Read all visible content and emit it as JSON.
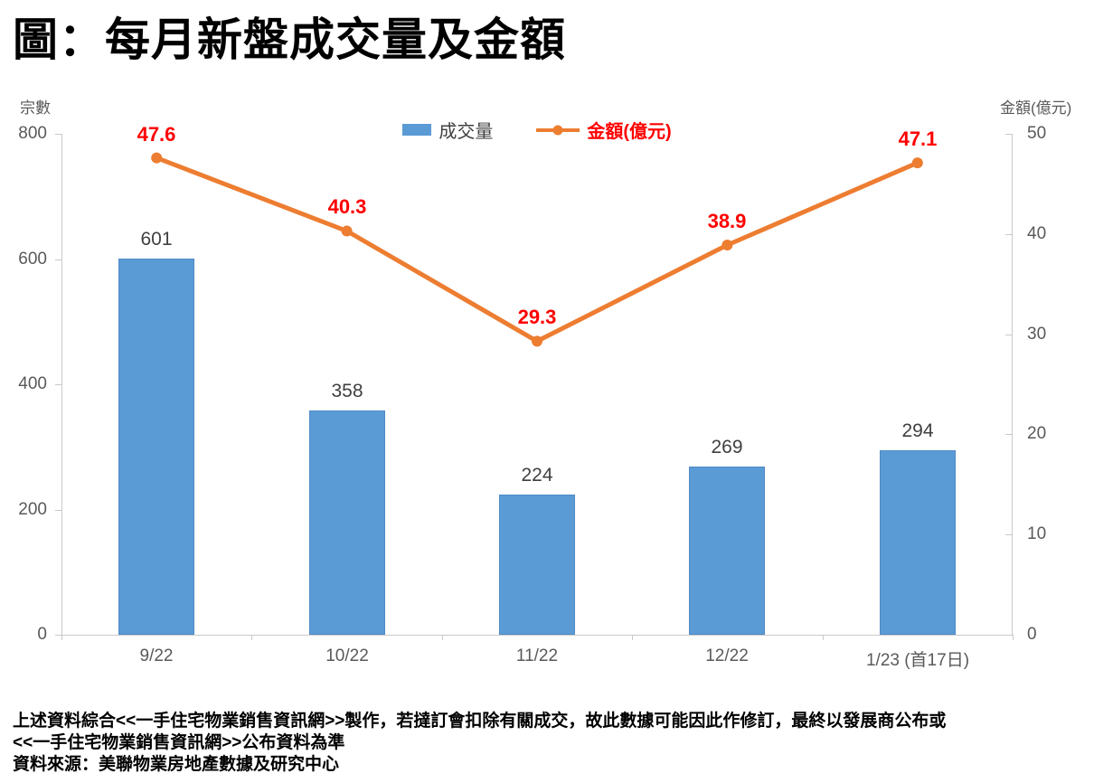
{
  "title": "圖：每月新盤成交量及金額",
  "chart_data": {
    "type": "bar",
    "subtype": "combo bar+line, dual axis",
    "categories": [
      "9/22",
      "10/22",
      "11/22",
      "12/22",
      "1/23 (首17日)"
    ],
    "series": [
      {
        "name": "成交量",
        "type": "bar",
        "axis": "left",
        "values": [
          601,
          358,
          224,
          269,
          294
        ]
      },
      {
        "name": "金額(億元)",
        "type": "line",
        "axis": "right",
        "values": [
          47.6,
          40.3,
          29.3,
          38.9,
          47.1
        ]
      }
    ],
    "left_axis": {
      "label": "宗數",
      "ticks": [
        0,
        200,
        400,
        600,
        800
      ],
      "min": 0,
      "max": 800
    },
    "right_axis": {
      "label": "金額(億元)",
      "ticks": [
        0,
        10,
        20,
        30,
        40,
        50
      ],
      "min": 0,
      "max": 50
    },
    "legend_position": "top-center",
    "grid": false
  },
  "colors": {
    "bar_fill": "#5b9bd5",
    "bar_border": "#4e8ac8",
    "line_stroke": "#ed7d31",
    "line_value_label": "#ff0000",
    "axis_line": "#c9c9c9",
    "tick_text": "#595959",
    "bar_value_label": "#404040"
  },
  "footer": {
    "line1": "上述資料綜合<<一手住宅物業銷售資訊網>>製作，若撻訂會扣除有關成交，故此數據可能因此作修訂，最終以發展商公布或",
    "line2": "<<一手住宅物業銷售資訊網>>公布資料為準",
    "line3": "資料來源：美聯物業房地產數據及研究中心"
  }
}
